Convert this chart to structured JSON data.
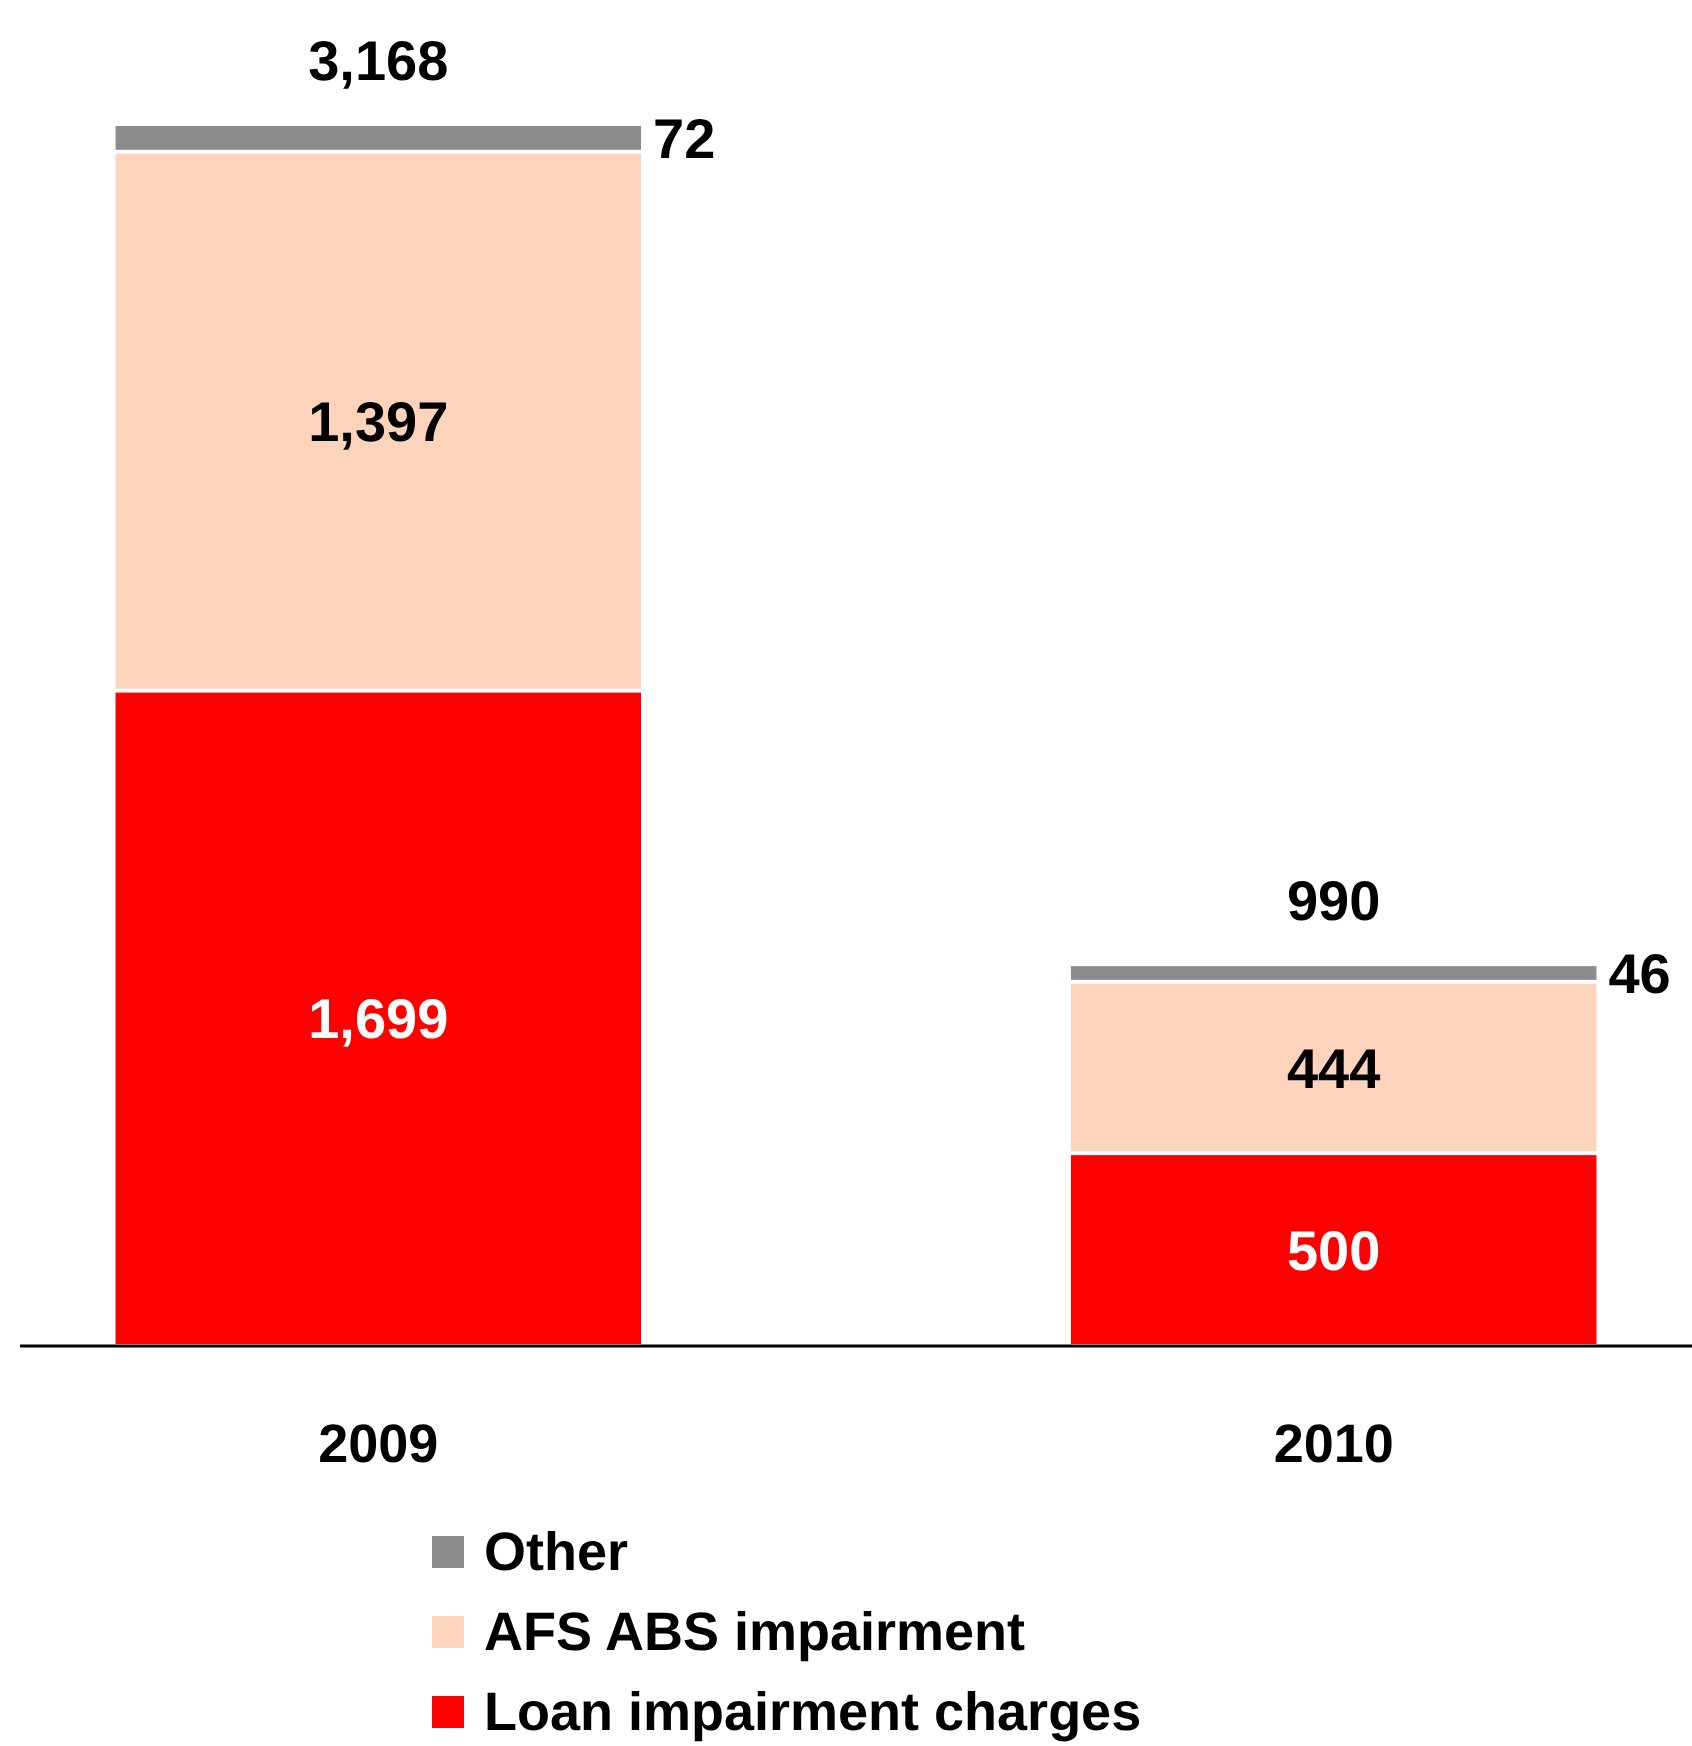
{
  "chart_data": {
    "type": "bar",
    "stacked": true,
    "categories": [
      "2009",
      "2010"
    ],
    "series": [
      {
        "name": "Loan impairment charges",
        "color": "#ff0000",
        "values": [
          1699,
          500
        ],
        "value_labels": [
          "1,699",
          "500"
        ]
      },
      {
        "name": "AFS ABS impairment",
        "color": "#fcd3bb",
        "values": [
          1397,
          444
        ],
        "value_labels": [
          "1,397",
          "444"
        ]
      },
      {
        "name": "Other",
        "color": "#8c8c8c",
        "values": [
          72,
          46
        ],
        "value_labels": [
          "72",
          "46"
        ]
      }
    ],
    "totals": [
      "3,168",
      "990"
    ],
    "legend": "bottom"
  }
}
